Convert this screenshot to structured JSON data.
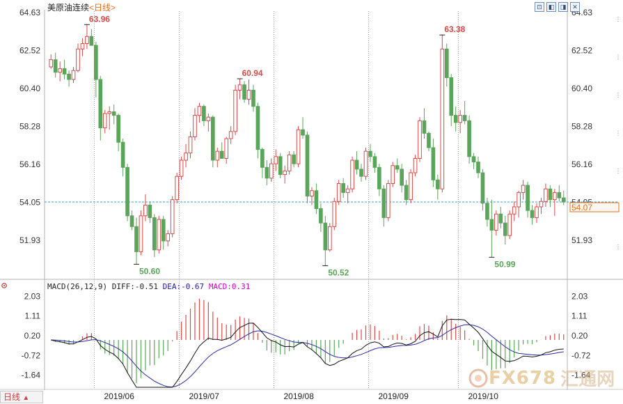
{
  "header": {
    "symbol": "美原油连续",
    "period": "<日线>"
  },
  "toolbar": {
    "icons": [
      "chart-mode-icon",
      "back-icon",
      "forward-icon",
      "close-icon"
    ]
  },
  "macd": {
    "params": "MACD(26,12,9)",
    "diff_label": "DIFF:-0.51",
    "dea_label": "DEA:-0.67",
    "macd_label": "MACD:0.31"
  },
  "bottom_tab": {
    "label": "日线",
    "arrow": "▲"
  },
  "watermark": {
    "text": "FX678",
    "cn": "汇通网"
  },
  "colors": {
    "up": "#d84a4a",
    "down": "#5aa55a",
    "grid": "#9a9a9a",
    "dea": "#2a2aa0",
    "diff": "#111111",
    "current": "#3aa0c8",
    "accent": "#e07020"
  },
  "chart_data": [
    {
      "type": "candlestick",
      "title": "美原油连续<日线>",
      "ylim": [
        49.8,
        64.63
      ],
      "y_ticks": [
        64.63,
        62.52,
        60.4,
        58.28,
        56.16,
        54.05,
        51.93
      ],
      "x_tick_labels": [
        "2019/06",
        "2019/07",
        "2019/08",
        "2019/09",
        "2019/10"
      ],
      "month_start_index": [
        10,
        29,
        50,
        71,
        91
      ],
      "current_price": 54.07,
      "current_price_label": "54.07",
      "annotations": [
        {
          "index": 8,
          "value": 63.96,
          "label": "63.96",
          "kind": "high"
        },
        {
          "index": 19,
          "value": 50.6,
          "label": "50.60",
          "kind": "low"
        },
        {
          "index": 42,
          "value": 60.94,
          "label": "60.94",
          "kind": "high"
        },
        {
          "index": 61,
          "value": 50.52,
          "label": "50.52",
          "kind": "low"
        },
        {
          "index": 87,
          "value": 63.38,
          "label": "63.38",
          "kind": "high"
        },
        {
          "index": 98,
          "value": 50.99,
          "label": "50.99",
          "kind": "low"
        }
      ],
      "ohlc": [
        [
          61.6,
          62.3,
          61.5,
          62.0
        ],
        [
          62.0,
          62.4,
          61.0,
          61.3
        ],
        [
          61.3,
          61.9,
          60.8,
          61.5
        ],
        [
          61.5,
          62.0,
          60.9,
          61.2
        ],
        [
          61.2,
          61.4,
          60.5,
          60.9
        ],
        [
          60.9,
          61.6,
          60.7,
          61.4
        ],
        [
          61.4,
          62.9,
          61.3,
          62.6
        ],
        [
          62.6,
          63.2,
          62.2,
          62.9
        ],
        [
          62.9,
          63.96,
          62.6,
          63.3
        ],
        [
          63.3,
          63.7,
          62.8,
          62.8
        ],
        [
          62.8,
          63.0,
          59.9,
          60.9
        ],
        [
          60.9,
          61.1,
          57.5,
          58.2
        ],
        [
          58.2,
          59.2,
          57.9,
          59.0
        ],
        [
          59.0,
          59.4,
          58.1,
          59.1
        ],
        [
          59.1,
          59.5,
          58.4,
          58.9
        ],
        [
          58.9,
          59.0,
          56.9,
          57.4
        ],
        [
          57.4,
          57.6,
          55.5,
          56.0
        ],
        [
          56.0,
          56.2,
          53.0,
          53.3
        ],
        [
          53.3,
          53.6,
          52.5,
          52.7
        ],
        [
          52.7,
          53.2,
          50.6,
          51.3
        ],
        [
          51.3,
          53.6,
          51.1,
          53.3
        ],
        [
          53.3,
          54.5,
          53.0,
          53.9
        ],
        [
          53.9,
          54.1,
          52.9,
          53.2
        ],
        [
          53.2,
          53.4,
          51.0,
          51.4
        ],
        [
          51.4,
          53.3,
          51.2,
          53.1
        ],
        [
          53.1,
          53.3,
          51.4,
          51.9
        ],
        [
          51.9,
          52.5,
          51.6,
          52.3
        ],
        [
          52.3,
          54.4,
          52.1,
          54.2
        ],
        [
          54.2,
          55.7,
          54.0,
          55.5
        ],
        [
          55.5,
          56.6,
          55.3,
          56.4
        ],
        [
          56.4,
          57.3,
          56.0,
          56.8
        ],
        [
          56.8,
          58.0,
          56.5,
          57.7
        ],
        [
          57.7,
          59.3,
          57.5,
          58.9
        ],
        [
          58.9,
          59.6,
          58.5,
          59.4
        ],
        [
          59.4,
          59.5,
          58.3,
          58.6
        ],
        [
          58.6,
          59.0,
          58.0,
          58.8
        ],
        [
          58.8,
          58.9,
          56.0,
          56.4
        ],
        [
          56.4,
          57.1,
          56.0,
          56.9
        ],
        [
          56.9,
          57.4,
          56.5,
          56.5
        ],
        [
          56.5,
          57.7,
          56.2,
          57.6
        ],
        [
          57.6,
          58.3,
          57.3,
          58.0
        ],
        [
          58.0,
          60.6,
          57.8,
          60.3
        ],
        [
          60.3,
          60.94,
          59.8,
          60.6
        ],
        [
          60.6,
          60.8,
          59.6,
          59.8
        ],
        [
          59.8,
          60.9,
          59.5,
          60.3
        ],
        [
          60.3,
          60.6,
          59.1,
          59.4
        ],
        [
          59.4,
          59.6,
          56.5,
          57.0
        ],
        [
          57.0,
          57.1,
          55.4,
          56.0
        ],
        [
          56.0,
          56.4,
          55.0,
          55.4
        ],
        [
          55.4,
          56.5,
          55.2,
          56.2
        ],
        [
          56.2,
          57.0,
          55.8,
          56.6
        ],
        [
          56.6,
          56.8,
          55.4,
          55.6
        ],
        [
          55.6,
          56.1,
          55.1,
          55.8
        ],
        [
          55.8,
          56.9,
          55.6,
          56.7
        ],
        [
          56.7,
          56.9,
          56.0,
          56.2
        ],
        [
          56.2,
          58.3,
          56.0,
          58.1
        ],
        [
          58.1,
          58.8,
          57.6,
          57.8
        ],
        [
          57.8,
          58.0,
          54.0,
          54.4
        ],
        [
          54.4,
          54.9,
          53.9,
          54.7
        ],
        [
          54.7,
          55.1,
          53.4,
          53.7
        ],
        [
          53.7,
          54.0,
          52.4,
          52.9
        ],
        [
          52.9,
          53.3,
          50.52,
          51.4
        ],
        [
          51.4,
          52.9,
          51.3,
          52.7
        ],
        [
          52.7,
          54.3,
          52.5,
          54.1
        ],
        [
          54.1,
          55.3,
          53.9,
          55.1
        ],
        [
          55.1,
          55.4,
          54.3,
          54.6
        ],
        [
          54.6,
          55.0,
          54.0,
          54.8
        ],
        [
          54.8,
          56.6,
          54.6,
          56.4
        ],
        [
          56.4,
          56.9,
          55.6,
          55.9
        ],
        [
          55.9,
          56.2,
          55.2,
          55.5
        ],
        [
          55.5,
          57.1,
          55.3,
          56.9
        ],
        [
          56.9,
          57.3,
          56.3,
          56.6
        ],
        [
          56.6,
          56.8,
          55.7,
          56.0
        ],
        [
          56.0,
          56.2,
          54.4,
          54.8
        ],
        [
          54.8,
          55.0,
          52.7,
          53.2
        ],
        [
          53.2,
          55.3,
          53.0,
          55.1
        ],
        [
          55.1,
          56.3,
          54.9,
          56.1
        ],
        [
          56.1,
          56.5,
          55.7,
          55.9
        ],
        [
          55.9,
          56.2,
          54.6,
          55.0
        ],
        [
          55.0,
          55.3,
          53.9,
          54.2
        ],
        [
          54.2,
          55.9,
          54.0,
          55.7
        ],
        [
          55.7,
          56.7,
          55.5,
          56.5
        ],
        [
          56.5,
          58.8,
          56.3,
          58.6
        ],
        [
          58.6,
          59.3,
          57.6,
          57.9
        ],
        [
          57.9,
          58.0,
          56.9,
          57.1
        ],
        [
          57.1,
          57.6,
          54.9,
          55.3
        ],
        [
          55.3,
          55.6,
          54.2,
          54.8
        ],
        [
          54.8,
          63.38,
          54.6,
          62.6
        ],
        [
          62.6,
          62.9,
          60.5,
          61.0
        ],
        [
          61.0,
          61.2,
          58.3,
          58.9
        ],
        [
          58.9,
          59.4,
          58.0,
          58.5
        ],
        [
          58.5,
          59.2,
          57.9,
          58.9
        ],
        [
          58.9,
          59.7,
          58.4,
          58.6
        ],
        [
          58.6,
          58.9,
          56.2,
          56.6
        ],
        [
          56.6,
          56.8,
          55.9,
          56.3
        ],
        [
          56.3,
          56.6,
          55.4,
          55.7
        ],
        [
          55.7,
          55.9,
          53.6,
          54.0
        ],
        [
          54.0,
          54.3,
          52.7,
          53.1
        ],
        [
          53.1,
          54.2,
          50.99,
          52.5
        ],
        [
          52.5,
          53.6,
          52.2,
          53.4
        ],
        [
          53.4,
          53.8,
          52.6,
          52.9
        ],
        [
          52.9,
          53.3,
          51.7,
          52.2
        ],
        [
          52.2,
          53.6,
          52.0,
          53.4
        ],
        [
          53.4,
          54.1,
          53.0,
          53.8
        ],
        [
          53.8,
          54.7,
          53.2,
          54.6
        ],
        [
          54.6,
          55.3,
          54.2,
          55.0
        ],
        [
          55.0,
          55.2,
          53.2,
          53.6
        ],
        [
          53.6,
          53.9,
          52.8,
          53.2
        ],
        [
          53.2,
          54.0,
          52.9,
          53.8
        ],
        [
          53.8,
          54.3,
          53.4,
          54.1
        ],
        [
          54.1,
          55.1,
          53.8,
          54.8
        ],
        [
          54.8,
          55.0,
          53.8,
          54.2
        ],
        [
          54.2,
          54.8,
          53.3,
          54.6
        ],
        [
          54.6,
          55.0,
          54.1,
          54.3
        ],
        [
          54.3,
          54.7,
          53.9,
          54.07
        ]
      ]
    },
    {
      "type": "macd",
      "title": "MACD(26,12,9)",
      "ylim": [
        -2.2,
        2.2
      ],
      "y_ticks": [
        2.03,
        1.11,
        0.2,
        -0.72,
        -1.64
      ],
      "series": [
        {
          "name": "DIFF",
          "value": -0.51
        },
        {
          "name": "DEA",
          "value": -0.67
        },
        {
          "name": "MACD",
          "value": 0.31
        }
      ]
    }
  ]
}
